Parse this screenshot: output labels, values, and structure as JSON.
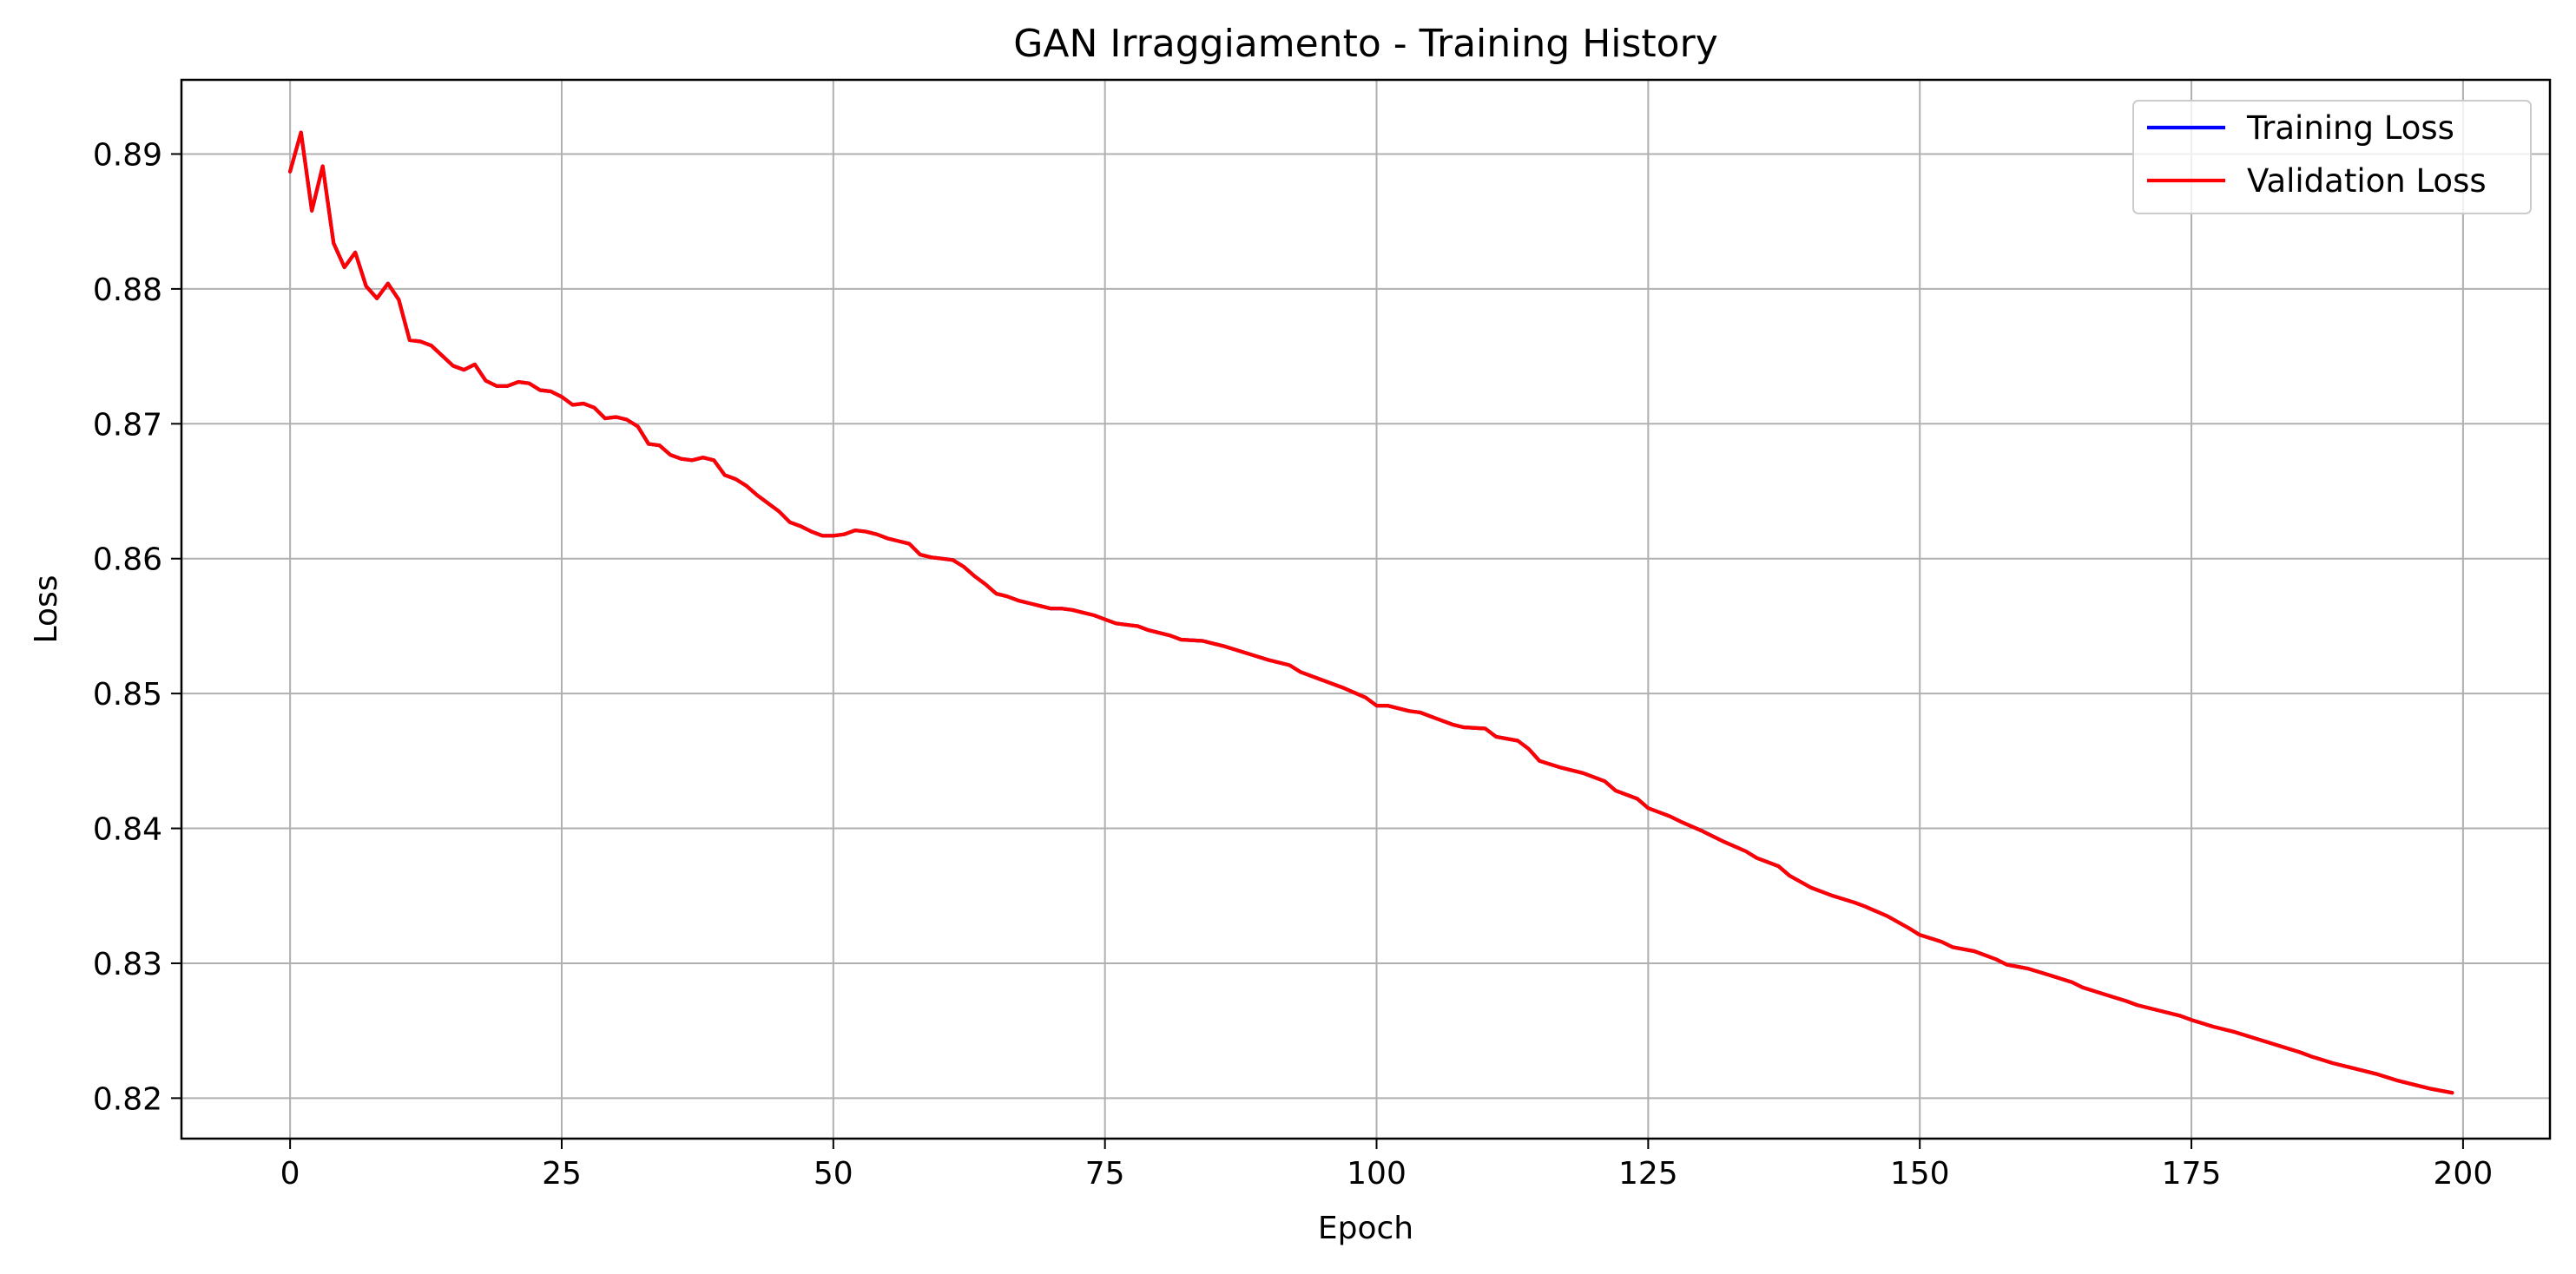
{
  "chart_data": {
    "type": "line",
    "title": "GAN Irraggiamento - Training History",
    "xlabel": "Epoch",
    "ylabel": "Loss",
    "xlim": [
      -10,
      208
    ],
    "ylim": [
      0.817,
      0.8955
    ],
    "xticks": [
      0,
      25,
      50,
      75,
      100,
      125,
      150,
      175,
      200
    ],
    "yticks": [
      0.82,
      0.83,
      0.84,
      0.85,
      0.86,
      0.87,
      0.88,
      0.89
    ],
    "xtick_labels": [
      "0",
      "25",
      "50",
      "75",
      "100",
      "125",
      "150",
      "175",
      "200"
    ],
    "ytick_labels": [
      "0.82",
      "0.83",
      "0.84",
      "0.85",
      "0.86",
      "0.87",
      "0.88",
      "0.89"
    ],
    "grid": true,
    "legend_position": "top-right",
    "series": [
      {
        "name": "Training Loss",
        "color": "#0000ff",
        "x": [
          0,
          1,
          2,
          3,
          4,
          5,
          6,
          7,
          8,
          9,
          10,
          11,
          12,
          13,
          15,
          16,
          17,
          18,
          19,
          20,
          21,
          22,
          23,
          24,
          25,
          26,
          27,
          28,
          29,
          30,
          31,
          32,
          33,
          34,
          35,
          36,
          37,
          38,
          39,
          40,
          41,
          42,
          43,
          45,
          46,
          47,
          48,
          49,
          50,
          51,
          52,
          53,
          54,
          55,
          56,
          57,
          58,
          59,
          60,
          61,
          62,
          63,
          64,
          65,
          66,
          67,
          68,
          69,
          70,
          71,
          72,
          73,
          74,
          75,
          76,
          77,
          78,
          79,
          80,
          81,
          82,
          84,
          86,
          88,
          90,
          92,
          93,
          95,
          97,
          99,
          100,
          101,
          103,
          104,
          105,
          107,
          108,
          110,
          111,
          113,
          114,
          115,
          117,
          119,
          121,
          122,
          124,
          125,
          127,
          128,
          130,
          132,
          134,
          135,
          137,
          138,
          140,
          142,
          144,
          145,
          147,
          149,
          150,
          152,
          153,
          155,
          157,
          158,
          160,
          162,
          164,
          165,
          167,
          169,
          170,
          172,
          174,
          175,
          177,
          179,
          181,
          183,
          185,
          186,
          188,
          190,
          192,
          194,
          195,
          197,
          199
        ],
        "values": [
          0.8887,
          0.8916,
          0.8858,
          0.8891,
          0.8834,
          0.8816,
          0.8827,
          0.8802,
          0.8793,
          0.8804,
          0.8792,
          0.8762,
          0.8761,
          0.8758,
          0.8743,
          0.874,
          0.8744,
          0.8732,
          0.8728,
          0.8728,
          0.8731,
          0.873,
          0.8725,
          0.8724,
          0.872,
          0.8714,
          0.8715,
          0.8712,
          0.8704,
          0.8705,
          0.8703,
          0.8698,
          0.8685,
          0.8684,
          0.8677,
          0.8674,
          0.8673,
          0.8675,
          0.8673,
          0.8662,
          0.8659,
          0.8654,
          0.8647,
          0.8635,
          0.8627,
          0.8624,
          0.862,
          0.8617,
          0.8617,
          0.8618,
          0.8621,
          0.862,
          0.8618,
          0.8615,
          0.8613,
          0.8611,
          0.8603,
          0.8601,
          0.86,
          0.8599,
          0.8594,
          0.8587,
          0.8581,
          0.8574,
          0.8572,
          0.8569,
          0.8567,
          0.8565,
          0.8563,
          0.8563,
          0.8562,
          0.856,
          0.8558,
          0.8555,
          0.8552,
          0.8551,
          0.855,
          0.8547,
          0.8545,
          0.8543,
          0.854,
          0.8539,
          0.8535,
          0.853,
          0.8525,
          0.8521,
          0.8516,
          0.851,
          0.8504,
          0.8497,
          0.8491,
          0.8491,
          0.8487,
          0.8486,
          0.8483,
          0.8477,
          0.8475,
          0.8474,
          0.8468,
          0.8465,
          0.8459,
          0.845,
          0.8445,
          0.8441,
          0.8435,
          0.8428,
          0.8422,
          0.8415,
          0.8409,
          0.8405,
          0.8398,
          0.839,
          0.8383,
          0.8378,
          0.8372,
          0.8365,
          0.8356,
          0.835,
          0.8345,
          0.8342,
          0.8335,
          0.8326,
          0.8321,
          0.8316,
          0.8312,
          0.8309,
          0.8303,
          0.8299,
          0.8296,
          0.8291,
          0.8286,
          0.8282,
          0.8277,
          0.8272,
          0.8269,
          0.8265,
          0.8261,
          0.8258,
          0.8253,
          0.8249,
          0.8244,
          0.8239,
          0.8234,
          0.8231,
          0.8226,
          0.8222,
          0.8218,
          0.8213,
          0.8211,
          0.8207,
          0.8204
        ]
      },
      {
        "name": "Validation Loss",
        "color": "#ff0000",
        "x": [
          0,
          1,
          2,
          3,
          4,
          5,
          6,
          7,
          8,
          9,
          10,
          11,
          12,
          13,
          15,
          16,
          17,
          18,
          19,
          20,
          21,
          22,
          23,
          24,
          25,
          26,
          27,
          28,
          29,
          30,
          31,
          32,
          33,
          34,
          35,
          36,
          37,
          38,
          39,
          40,
          41,
          42,
          43,
          45,
          46,
          47,
          48,
          49,
          50,
          51,
          52,
          53,
          54,
          55,
          56,
          57,
          58,
          59,
          60,
          61,
          62,
          63,
          64,
          65,
          66,
          67,
          68,
          69,
          70,
          71,
          72,
          73,
          74,
          75,
          76,
          77,
          78,
          79,
          80,
          81,
          82,
          84,
          86,
          88,
          90,
          92,
          93,
          95,
          97,
          99,
          100,
          101,
          103,
          104,
          105,
          107,
          108,
          110,
          111,
          113,
          114,
          115,
          117,
          119,
          121,
          122,
          124,
          125,
          127,
          128,
          130,
          132,
          134,
          135,
          137,
          138,
          140,
          142,
          144,
          145,
          147,
          149,
          150,
          152,
          153,
          155,
          157,
          158,
          160,
          162,
          164,
          165,
          167,
          169,
          170,
          172,
          174,
          175,
          177,
          179,
          181,
          183,
          185,
          186,
          188,
          190,
          192,
          194,
          195,
          197,
          199
        ],
        "values": [
          0.8887,
          0.8916,
          0.8858,
          0.8891,
          0.8834,
          0.8816,
          0.8827,
          0.8802,
          0.8793,
          0.8804,
          0.8792,
          0.8762,
          0.8761,
          0.8758,
          0.8743,
          0.874,
          0.8744,
          0.8732,
          0.8728,
          0.8728,
          0.8731,
          0.873,
          0.8725,
          0.8724,
          0.872,
          0.8714,
          0.8715,
          0.8712,
          0.8704,
          0.8705,
          0.8703,
          0.8698,
          0.8685,
          0.8684,
          0.8677,
          0.8674,
          0.8673,
          0.8675,
          0.8673,
          0.8662,
          0.8659,
          0.8654,
          0.8647,
          0.8635,
          0.8627,
          0.8624,
          0.862,
          0.8617,
          0.8617,
          0.8618,
          0.8621,
          0.862,
          0.8618,
          0.8615,
          0.8613,
          0.8611,
          0.8603,
          0.8601,
          0.86,
          0.8599,
          0.8594,
          0.8587,
          0.8581,
          0.8574,
          0.8572,
          0.8569,
          0.8567,
          0.8565,
          0.8563,
          0.8563,
          0.8562,
          0.856,
          0.8558,
          0.8555,
          0.8552,
          0.8551,
          0.855,
          0.8547,
          0.8545,
          0.8543,
          0.854,
          0.8539,
          0.8535,
          0.853,
          0.8525,
          0.8521,
          0.8516,
          0.851,
          0.8504,
          0.8497,
          0.8491,
          0.8491,
          0.8487,
          0.8486,
          0.8483,
          0.8477,
          0.8475,
          0.8474,
          0.8468,
          0.8465,
          0.8459,
          0.845,
          0.8445,
          0.8441,
          0.8435,
          0.8428,
          0.8422,
          0.8415,
          0.8409,
          0.8405,
          0.8398,
          0.839,
          0.8383,
          0.8378,
          0.8372,
          0.8365,
          0.8356,
          0.835,
          0.8345,
          0.8342,
          0.8335,
          0.8326,
          0.8321,
          0.8316,
          0.8312,
          0.8309,
          0.8303,
          0.8299,
          0.8296,
          0.8291,
          0.8286,
          0.8282,
          0.8277,
          0.8272,
          0.8269,
          0.8265,
          0.8261,
          0.8258,
          0.8253,
          0.8249,
          0.8244,
          0.8239,
          0.8234,
          0.8231,
          0.8226,
          0.8222,
          0.8218,
          0.8213,
          0.8211,
          0.8207,
          0.8204
        ]
      }
    ],
    "grid_color": "#b0b0b0",
    "axes_color": "#000000",
    "legend_border_color": "#cccccc"
  }
}
